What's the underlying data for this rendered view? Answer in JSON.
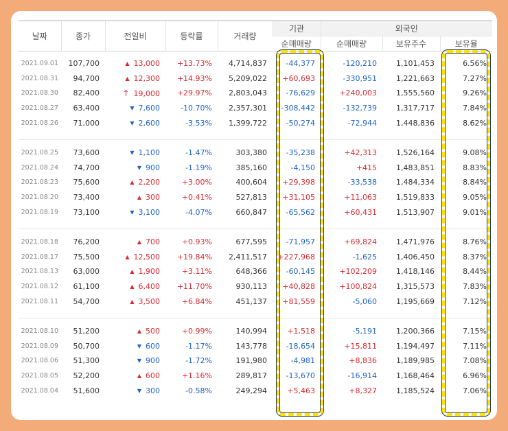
{
  "colors": {
    "background": "#f4ab7a",
    "up": "#d8292f",
    "down": "#1d63c4",
    "highlight": "#ffe100"
  },
  "headers": {
    "date": "날짜",
    "close": "종가",
    "change": "전일비",
    "rate": "등락률",
    "volume": "거래량",
    "institution": "기관",
    "foreign": "외국인",
    "inst_net": "순매매량",
    "foreign_net": "순매매량",
    "holdings": "보유주수",
    "hold_ratio": "보유율"
  },
  "rows": [
    {
      "date": "2021.09.01",
      "close": "107,700",
      "dir": "up",
      "change": "13,000",
      "rate": "+13.73%",
      "volume": "4,714,837",
      "inst": "-44,377",
      "foreign": "-120,210",
      "holdings": "1,101,453",
      "ratio": "6.56%"
    },
    {
      "date": "2021.08.31",
      "close": "94,700",
      "dir": "up",
      "change": "12,300",
      "rate": "+14.93%",
      "volume": "5,209,022",
      "inst": "+60,693",
      "foreign": "-330,951",
      "holdings": "1,221,663",
      "ratio": "7.27%"
    },
    {
      "date": "2021.08.30",
      "close": "82,400",
      "dir": "limit",
      "change": "19,000",
      "rate": "+29.97%",
      "volume": "2,803,043",
      "inst": "-76,629",
      "foreign": "+240,003",
      "holdings": "1,555,560",
      "ratio": "9.26%"
    },
    {
      "date": "2021.08.27",
      "close": "63,400",
      "dir": "down",
      "change": "7,600",
      "rate": "-10.70%",
      "volume": "2,357,301",
      "inst": "-308,442",
      "foreign": "-132,739",
      "holdings": "1,317,717",
      "ratio": "7.84%"
    },
    {
      "date": "2021.08.26",
      "close": "71,000",
      "dir": "down",
      "change": "2,600",
      "rate": "-3.53%",
      "volume": "1,399,722",
      "inst": "-50,274",
      "foreign": "-72,944",
      "holdings": "1,448,836",
      "ratio": "8.62%"
    },
    {
      "date": "2021.08.25",
      "close": "73,600",
      "dir": "down",
      "change": "1,100",
      "rate": "-1.47%",
      "volume": "303,380",
      "inst": "-35,238",
      "foreign": "+42,313",
      "holdings": "1,526,164",
      "ratio": "9.08%"
    },
    {
      "date": "2021.08.24",
      "close": "74,700",
      "dir": "down",
      "change": "900",
      "rate": "-1.19%",
      "volume": "385,160",
      "inst": "-4,150",
      "foreign": "+415",
      "holdings": "1,483,851",
      "ratio": "8.83%"
    },
    {
      "date": "2021.08.23",
      "close": "75,600",
      "dir": "up",
      "change": "2,200",
      "rate": "+3.00%",
      "volume": "400,604",
      "inst": "+29,398",
      "foreign": "-33,538",
      "holdings": "1,484,334",
      "ratio": "8.84%"
    },
    {
      "date": "2021.08.20",
      "close": "73,400",
      "dir": "up",
      "change": "300",
      "rate": "+0.41%",
      "volume": "527,813",
      "inst": "+31,105",
      "foreign": "+11,063",
      "holdings": "1,519,833",
      "ratio": "9.05%"
    },
    {
      "date": "2021.08.19",
      "close": "73,100",
      "dir": "down",
      "change": "3,100",
      "rate": "-4.07%",
      "volume": "660,847",
      "inst": "-65,562",
      "foreign": "+60,431",
      "holdings": "1,513,907",
      "ratio": "9.01%"
    },
    {
      "date": "2021.08.18",
      "close": "76,200",
      "dir": "up",
      "change": "700",
      "rate": "+0.93%",
      "volume": "677,595",
      "inst": "-71,957",
      "foreign": "+69,824",
      "holdings": "1,471,976",
      "ratio": "8.76%"
    },
    {
      "date": "2021.08.17",
      "close": "75,500",
      "dir": "up",
      "change": "12,500",
      "rate": "+19.84%",
      "volume": "2,411,517",
      "inst": "+227,968",
      "foreign": "-1,625",
      "holdings": "1,406,450",
      "ratio": "8.37%"
    },
    {
      "date": "2021.08.13",
      "close": "63,000",
      "dir": "up",
      "change": "1,900",
      "rate": "+3.11%",
      "volume": "648,366",
      "inst": "-60,145",
      "foreign": "+102,209",
      "holdings": "1,418,146",
      "ratio": "8.44%"
    },
    {
      "date": "2021.08.12",
      "close": "61,100",
      "dir": "up",
      "change": "6,400",
      "rate": "+11.70%",
      "volume": "930,113",
      "inst": "+40,828",
      "foreign": "+100,824",
      "holdings": "1,315,573",
      "ratio": "7.83%"
    },
    {
      "date": "2021.08.11",
      "close": "54,700",
      "dir": "up",
      "change": "3,500",
      "rate": "+6.84%",
      "volume": "451,137",
      "inst": "+81,559",
      "foreign": "-5,060",
      "holdings": "1,195,669",
      "ratio": "7.12%"
    },
    {
      "date": "2021.08.10",
      "close": "51,200",
      "dir": "up",
      "change": "500",
      "rate": "+0.99%",
      "volume": "140,994",
      "inst": "+1,518",
      "foreign": "-5,191",
      "holdings": "1,200,366",
      "ratio": "7.15%"
    },
    {
      "date": "2021.08.09",
      "close": "50,700",
      "dir": "down",
      "change": "600",
      "rate": "-1.17%",
      "volume": "143,778",
      "inst": "-18,654",
      "foreign": "+15,811",
      "holdings": "1,194,497",
      "ratio": "7.11%"
    },
    {
      "date": "2021.08.06",
      "close": "51,300",
      "dir": "down",
      "change": "900",
      "rate": "-1.72%",
      "volume": "191,980",
      "inst": "-4,981",
      "foreign": "+8,836",
      "holdings": "1,189,985",
      "ratio": "7.08%"
    },
    {
      "date": "2021.08.05",
      "close": "52,200",
      "dir": "up",
      "change": "600",
      "rate": "+1.16%",
      "volume": "289,817",
      "inst": "-13,670",
      "foreign": "-16,914",
      "holdings": "1,168,464",
      "ratio": "6.96%"
    },
    {
      "date": "2021.08.04",
      "close": "51,600",
      "dir": "down",
      "change": "300",
      "rate": "-0.58%",
      "volume": "249,294",
      "inst": "+5,463",
      "foreign": "+8,327",
      "holdings": "1,185,524",
      "ratio": "7.06%"
    }
  ]
}
